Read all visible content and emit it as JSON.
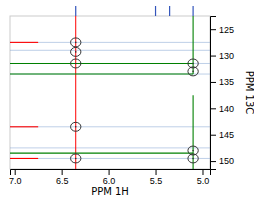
{
  "chart_data": {
    "type": "scatter",
    "xlabel": "PPM 1H",
    "ylabel": "PPM 13C",
    "xlim": [
      7.05,
      4.92
    ],
    "ylim": [
      151.5,
      122.5
    ],
    "xticks": [
      {
        "value": 7.0,
        "label": "7.0"
      },
      {
        "value": 6.5,
        "label": "6.5"
      },
      {
        "value": 6.0,
        "label": "6.0"
      },
      {
        "value": 5.5,
        "label": "5.5"
      },
      {
        "value": 5.0,
        "label": "5.0"
      }
    ],
    "yticks": [
      125,
      130,
      135,
      140,
      145,
      150
    ],
    "series": [
      {
        "x": [
          6.35,
          6.35,
          6.35,
          6.35,
          6.35
        ],
        "values": [
          127.5,
          129.3,
          131.5,
          143.5,
          149.5
        ],
        "rx": [
          0.055,
          0.055,
          0.055,
          0.055,
          0.055
        ],
        "ry": [
          0.85,
          0.85,
          0.85,
          0.85,
          0.85
        ],
        "color": "#333333",
        "marker": "ellipse"
      },
      {
        "x": [
          5.1,
          5.1,
          5.1,
          5.1
        ],
        "values": [
          131.5,
          133.0,
          148.0,
          149.5
        ],
        "rx": [
          0.055,
          0.055,
          0.055,
          0.055
        ],
        "ry": [
          0.85,
          0.85,
          0.85,
          0.85
        ],
        "color": "#333333",
        "marker": "ellipse"
      }
    ],
    "horizontal_lines": [
      {
        "values": [
          127.5,
          129.0,
          131.5,
          133.5,
          143.5,
          147.5,
          149.5
        ],
        "color": "#7799cc"
      }
    ],
    "vertical_lines": [
      {
        "x": 6.35,
        "color": "red"
      }
    ],
    "horizontal_segments": [
      {
        "y": 127.5,
        "x1": 7.05,
        "x2": 6.75,
        "color": "red"
      },
      {
        "y": 143.5,
        "x1": 7.05,
        "x2": 6.75,
        "color": "red"
      },
      {
        "y": 149.5,
        "x1": 7.05,
        "x2": 6.75,
        "color": "red"
      },
      {
        "y": 131.5,
        "x1": 5.1,
        "x2": 7.05,
        "color": "green"
      },
      {
        "y": 133.5,
        "x1": 5.1,
        "x2": 7.05,
        "color": "green"
      },
      {
        "y": 148.5,
        "x1": 5.1,
        "x2": 7.05,
        "color": "green"
      }
    ],
    "vertical_segments": [
      {
        "x": 5.1,
        "y1": 122.5,
        "y2": 133.5,
        "color": "green"
      },
      {
        "x": 5.1,
        "y1": 137.5,
        "y2": 151.5,
        "color": "green"
      }
    ],
    "top_peaks": {
      "x": [
        6.35,
        5.5,
        5.35,
        5.1
      ],
      "color": "#3355bb"
    }
  }
}
